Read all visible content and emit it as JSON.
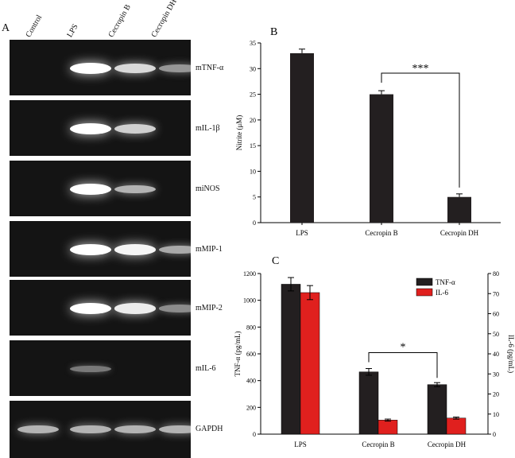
{
  "panel_a": {
    "letter": "A",
    "lanes": [
      "Control",
      "LPS",
      "Cecropin B",
      "Cecropin DH"
    ],
    "gels": [
      {
        "label": "mTNF-α",
        "intensity": [
          0,
          1.0,
          0.8,
          0.45
        ]
      },
      {
        "label": "mIL-1β",
        "intensity": [
          0,
          1.0,
          0.75,
          0
        ]
      },
      {
        "label": "miNOS",
        "intensity": [
          0,
          1.0,
          0.6,
          0
        ]
      },
      {
        "label": "mMIP-1",
        "intensity": [
          0,
          1.0,
          0.95,
          0.55
        ]
      },
      {
        "label": "mMIP-2",
        "intensity": [
          0,
          1.0,
          0.9,
          0.4
        ]
      },
      {
        "label": "mIL-6",
        "intensity": [
          0,
          0.3,
          0,
          0
        ]
      },
      {
        "label": "GAPDH",
        "intensity": [
          0.6,
          0.6,
          0.6,
          0.6
        ]
      }
    ]
  },
  "chart_data": [
    {
      "panel": "B",
      "type": "bar",
      "categories": [
        "LPS",
        "Cecropin B",
        "Cecropin DH"
      ],
      "series": [
        {
          "values": [
            33,
            25,
            5
          ],
          "errors": [
            0.8,
            0.7,
            0.6
          ]
        }
      ],
      "ylabel": "Nitrite (μM)",
      "ylim": [
        0,
        35
      ],
      "yticks": [
        0,
        5,
        10,
        15,
        20,
        25,
        30,
        35
      ],
      "significance": [
        {
          "from": "Cecropin B",
          "to": "Cecropin DH",
          "label": "***"
        }
      ],
      "colors": {
        "bar": "#231f20"
      }
    },
    {
      "panel": "C",
      "type": "bar",
      "categories": [
        "LPS",
        "Cecropin B",
        "Cecropin DH"
      ],
      "series": [
        {
          "name": "TNF-α",
          "values": [
            1120,
            465,
            370
          ],
          "errors": [
            50,
            25,
            15
          ],
          "axis": "left",
          "color": "#231f20"
        },
        {
          "name": "IL-6",
          "values": [
            70.5,
            7,
            8
          ],
          "errors": [
            3.5,
            0.5,
            0.5
          ],
          "axis": "right",
          "color": "#e0201e"
        }
      ],
      "ylabel_left": "TNF-α (pg/mL)",
      "ylabel_right": "IL-6 (pg/mL)",
      "ylim_left": [
        0,
        1200
      ],
      "ylim_right": [
        0,
        80
      ],
      "yticks_left": [
        0,
        200,
        400,
        600,
        800,
        1000,
        1200
      ],
      "yticks_right": [
        0,
        10,
        20,
        30,
        40,
        50,
        60,
        70,
        80
      ],
      "legend_position": "top-right",
      "significance": [
        {
          "from": "Cecropin B",
          "to": "Cecropin DH",
          "label": "*"
        }
      ]
    }
  ]
}
